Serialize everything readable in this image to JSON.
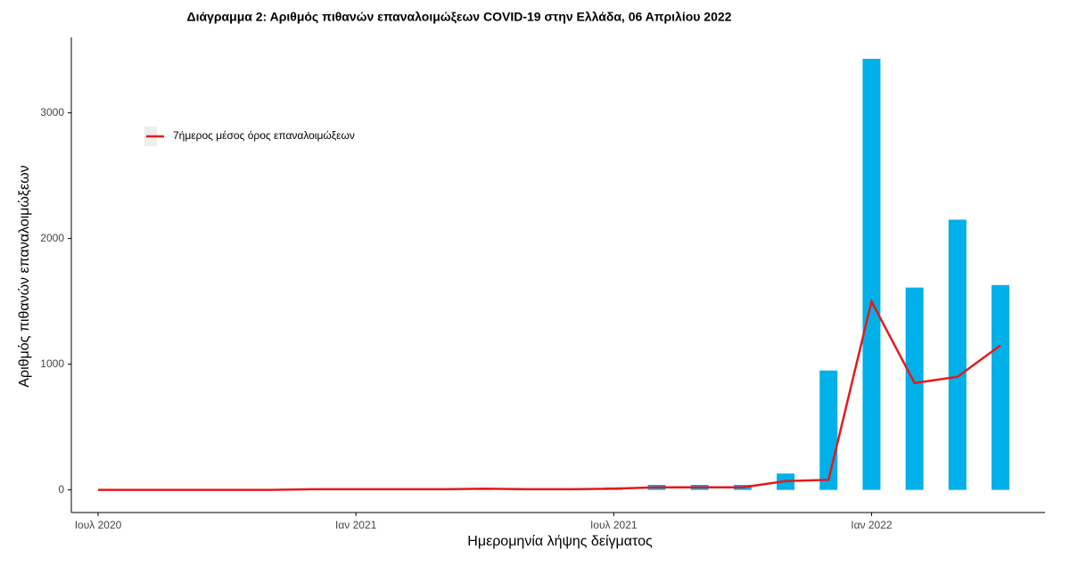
{
  "chart_data": {
    "type": "bar-line",
    "title": "Διάγραμμα 2: Αριθμός πιθανών επαναλοιμώξεων COVID-19 στην Ελλάδα, 06 Απριλίου 2022",
    "x_label": "Ημερομηνία λήψης δείγματος",
    "y_label": "Αριθμός πιθανών επαναλοιμώξεων",
    "x": [
      "2020-07",
      "2020-08",
      "2020-09",
      "2020-10",
      "2020-11",
      "2020-12",
      "2021-01",
      "2021-02",
      "2021-03",
      "2021-04",
      "2021-05",
      "2021-06",
      "2021-07",
      "2021-08",
      "2021-09",
      "2021-10",
      "2021-11",
      "2021-12",
      "2022-01",
      "2022-02",
      "2022-03",
      "2022-04"
    ],
    "series": [
      {
        "type": "bar",
        "color": "#00b0e8",
        "values": [
          0,
          0,
          0,
          0,
          5,
          5,
          5,
          10,
          10,
          10,
          10,
          10,
          20,
          40,
          40,
          40,
          130,
          950,
          3430,
          1610,
          2150,
          1630
        ]
      },
      {
        "type": "line",
        "name": "7ήμερος μέσος όρος επαναλοιμώξεων",
        "color": "#e41a1c",
        "values": [
          0,
          0,
          0,
          0,
          0,
          5,
          5,
          5,
          5,
          10,
          5,
          5,
          10,
          20,
          20,
          20,
          70,
          80,
          1500,
          850,
          900,
          1150
        ]
      }
    ],
    "xlim": [
      "2020-07",
      "2022-04"
    ],
    "xticks": [
      {
        "value": "2020-07",
        "label": "Ιουλ 2020"
      },
      {
        "value": "2021-01",
        "label": "Ιαν 2021"
      },
      {
        "value": "2021-07",
        "label": "Ιουλ 2021"
      },
      {
        "value": "2022-01",
        "label": "Ιαν 2022"
      }
    ],
    "ylim": [
      -180,
      3600
    ],
    "yticks": [
      0,
      1000,
      2000,
      3000
    ]
  }
}
